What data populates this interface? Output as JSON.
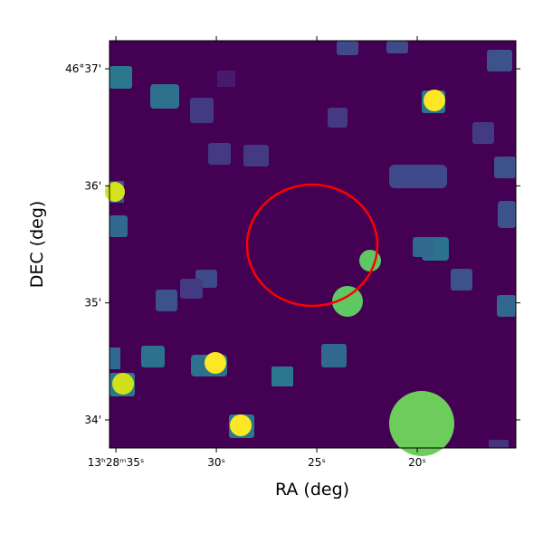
{
  "chart_data": {
    "type": "image",
    "xlabel": "RA (deg)",
    "ylabel": "DEC (deg)",
    "xlim": [
      35.32,
      15.09
    ],
    "ylim": [
      33.76,
      37.24
    ],
    "xticks": [
      {
        "value": 35,
        "label": "13ʰ28ᵐ35ˢ"
      },
      {
        "value": 30,
        "label": "30ˢ"
      },
      {
        "value": 25,
        "label": "25ˢ"
      },
      {
        "value": 20,
        "label": "20ˢ"
      }
    ],
    "yticks": [
      {
        "value": 37,
        "label": "46°37'"
      },
      {
        "value": 36,
        "label": "36'"
      },
      {
        "value": 35,
        "label": "35'"
      },
      {
        "value": 34,
        "label": "34'"
      }
    ],
    "grid": false
  }
}
